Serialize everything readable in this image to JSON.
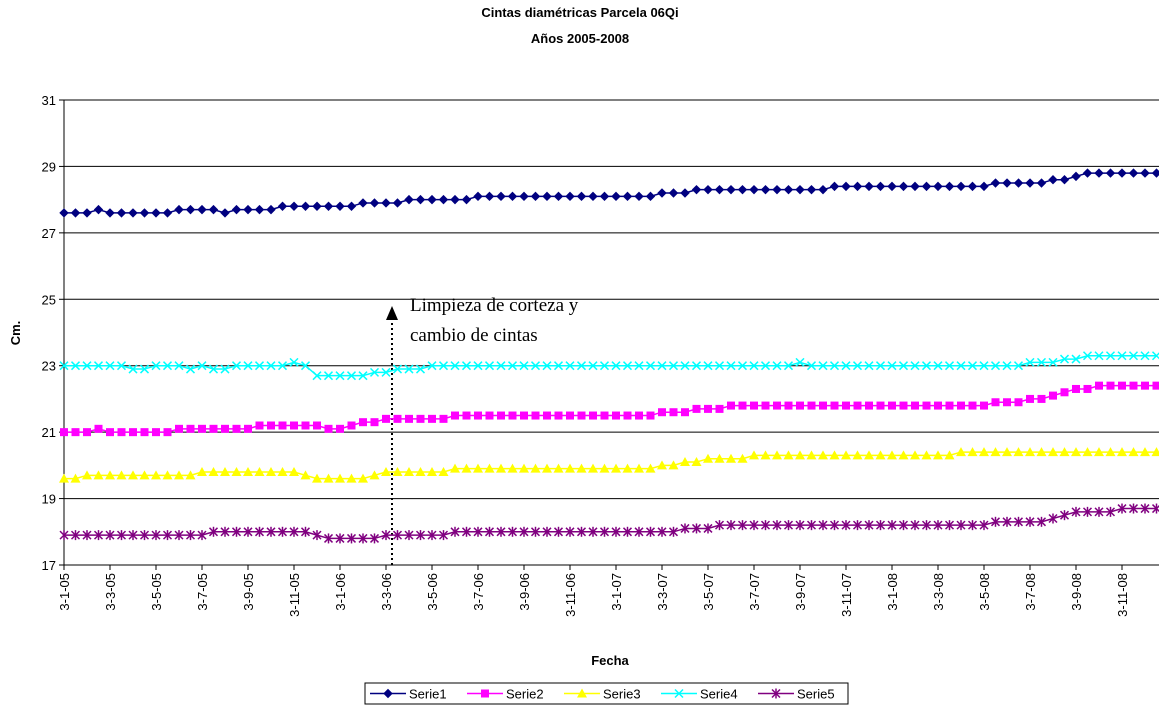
{
  "chart_data": {
    "type": "line",
    "title": "Cintas diamétricas  Parcela 06Qi",
    "subtitle": "Años 2005-2008",
    "y_label": "Cm.",
    "x_label": "Fecha",
    "annotation": [
      "Limpieza de corteza y",
      "cambio de cintas"
    ],
    "ylim": [
      17,
      31
    ],
    "yticks": [
      17,
      19,
      21,
      23,
      25,
      27,
      29,
      31
    ],
    "grid": true,
    "legend": "bottom",
    "categories": [
      "3-1-05",
      null,
      null,
      null,
      "3-3-05",
      null,
      null,
      null,
      "3-5-05",
      null,
      null,
      null,
      "3-7-05",
      null,
      null,
      null,
      "3-9-05",
      null,
      null,
      null,
      "3-11-05",
      null,
      null,
      null,
      "3-1-06",
      null,
      null,
      null,
      "3-3-06",
      null,
      null,
      null,
      "3-5-06",
      null,
      null,
      null,
      "3-7-06",
      null,
      null,
      null,
      "3-9-06",
      null,
      null,
      null,
      "3-11-06",
      null,
      null,
      null,
      "3-1-07",
      null,
      null,
      null,
      "3-3-07",
      null,
      null,
      null,
      "3-5-07",
      null,
      null,
      null,
      "3-7-07",
      null,
      null,
      null,
      "3-9-07",
      null,
      null,
      null,
      "3-11-07",
      null,
      null,
      null,
      "3-1-08",
      null,
      null,
      null,
      "3-3-08",
      null,
      null,
      null,
      "3-5-08",
      null,
      null,
      null,
      "3-7-08",
      null,
      null,
      null,
      "3-9-08",
      null,
      null,
      null,
      "3-11-08",
      null,
      null,
      null
    ],
    "series": [
      {
        "name": "Serie1",
        "color": "#000080",
        "marker": "diamond",
        "values": [
          27.6,
          27.6,
          27.6,
          27.7,
          27.6,
          27.6,
          27.6,
          27.6,
          27.6,
          27.6,
          27.7,
          27.7,
          27.7,
          27.7,
          27.6,
          27.7,
          27.7,
          27.7,
          27.7,
          27.8,
          27.8,
          27.8,
          27.8,
          27.8,
          27.8,
          27.8,
          27.9,
          27.9,
          27.9,
          27.9,
          28,
          28,
          28,
          28,
          28,
          28,
          28.1,
          28.1,
          28.1,
          28.1,
          28.1,
          28.1,
          28.1,
          28.1,
          28.1,
          28.1,
          28.1,
          28.1,
          28.1,
          28.1,
          28.1,
          28.1,
          28.2,
          28.2,
          28.2,
          28.3,
          28.3,
          28.3,
          28.3,
          28.3,
          28.3,
          28.3,
          28.3,
          28.3,
          28.3,
          28.3,
          28.3,
          28.4,
          28.4,
          28.4,
          28.4,
          28.4,
          28.4,
          28.4,
          28.4,
          28.4,
          28.4,
          28.4,
          28.4,
          28.4,
          28.4,
          28.5,
          28.5,
          28.5,
          28.5,
          28.5,
          28.6,
          28.6,
          28.7,
          28.8,
          28.8,
          28.8,
          28.8,
          28.8,
          28.8,
          28.8
        ]
      },
      {
        "name": "Serie2",
        "color": "#FF00FF",
        "marker": "square",
        "values": [
          21,
          21,
          21,
          21.1,
          21,
          21,
          21,
          21,
          21,
          21,
          21.1,
          21.1,
          21.1,
          21.1,
          21.1,
          21.1,
          21.1,
          21.2,
          21.2,
          21.2,
          21.2,
          21.2,
          21.2,
          21.1,
          21.1,
          21.2,
          21.3,
          21.3,
          21.4,
          21.4,
          21.4,
          21.4,
          21.4,
          21.4,
          21.5,
          21.5,
          21.5,
          21.5,
          21.5,
          21.5,
          21.5,
          21.5,
          21.5,
          21.5,
          21.5,
          21.5,
          21.5,
          21.5,
          21.5,
          21.5,
          21.5,
          21.5,
          21.6,
          21.6,
          21.6,
          21.7,
          21.7,
          21.7,
          21.8,
          21.8,
          21.8,
          21.8,
          21.8,
          21.8,
          21.8,
          21.8,
          21.8,
          21.8,
          21.8,
          21.8,
          21.8,
          21.8,
          21.8,
          21.8,
          21.8,
          21.8,
          21.8,
          21.8,
          21.8,
          21.8,
          21.8,
          21.9,
          21.9,
          21.9,
          22,
          22,
          22.1,
          22.2,
          22.3,
          22.3,
          22.4,
          22.4,
          22.4,
          22.4,
          22.4,
          22.4
        ]
      },
      {
        "name": "Serie3",
        "color": "#FFFF00",
        "marker": "triangle",
        "values": [
          19.6,
          19.6,
          19.7,
          19.7,
          19.7,
          19.7,
          19.7,
          19.7,
          19.7,
          19.7,
          19.7,
          19.7,
          19.8,
          19.8,
          19.8,
          19.8,
          19.8,
          19.8,
          19.8,
          19.8,
          19.8,
          19.7,
          19.6,
          19.6,
          19.6,
          19.6,
          19.6,
          19.7,
          19.8,
          19.8,
          19.8,
          19.8,
          19.8,
          19.8,
          19.9,
          19.9,
          19.9,
          19.9,
          19.9,
          19.9,
          19.9,
          19.9,
          19.9,
          19.9,
          19.9,
          19.9,
          19.9,
          19.9,
          19.9,
          19.9,
          19.9,
          19.9,
          20,
          20,
          20.1,
          20.1,
          20.2,
          20.2,
          20.2,
          20.2,
          20.3,
          20.3,
          20.3,
          20.3,
          20.3,
          20.3,
          20.3,
          20.3,
          20.3,
          20.3,
          20.3,
          20.3,
          20.3,
          20.3,
          20.3,
          20.3,
          20.3,
          20.3,
          20.4,
          20.4,
          20.4,
          20.4,
          20.4,
          20.4,
          20.4,
          20.4,
          20.4,
          20.4,
          20.4,
          20.4,
          20.4,
          20.4,
          20.4,
          20.4,
          20.4,
          20.4
        ]
      },
      {
        "name": "Serie4",
        "color": "#00FFFF",
        "marker": "x",
        "values": [
          23,
          23,
          23,
          23,
          23,
          23,
          22.9,
          22.9,
          23,
          23,
          23,
          22.9,
          23,
          22.9,
          22.9,
          23,
          23,
          23,
          23,
          23,
          23.1,
          23,
          22.7,
          22.7,
          22.7,
          22.7,
          22.7,
          22.8,
          22.8,
          22.9,
          22.9,
          22.9,
          23,
          23,
          23,
          23,
          23,
          23,
          23,
          23,
          23,
          23,
          23,
          23,
          23,
          23,
          23,
          23,
          23,
          23,
          23,
          23,
          23,
          23,
          23,
          23,
          23,
          23,
          23,
          23,
          23,
          23,
          23,
          23,
          23.1,
          23,
          23,
          23,
          23,
          23,
          23,
          23,
          23,
          23,
          23,
          23,
          23,
          23,
          23,
          23,
          23,
          23,
          23,
          23,
          23.1,
          23.1,
          23.1,
          23.2,
          23.2,
          23.3,
          23.3,
          23.3,
          23.3,
          23.3,
          23.3,
          23.3
        ]
      },
      {
        "name": "Serie5",
        "color": "#800080",
        "marker": "asterisk",
        "values": [
          17.9,
          17.9,
          17.9,
          17.9,
          17.9,
          17.9,
          17.9,
          17.9,
          17.9,
          17.9,
          17.9,
          17.9,
          17.9,
          18,
          18,
          18,
          18,
          18,
          18,
          18,
          18,
          18,
          17.9,
          17.8,
          17.8,
          17.8,
          17.8,
          17.8,
          17.9,
          17.9,
          17.9,
          17.9,
          17.9,
          17.9,
          18,
          18,
          18,
          18,
          18,
          18,
          18,
          18,
          18,
          18,
          18,
          18,
          18,
          18,
          18,
          18,
          18,
          18,
          18,
          18,
          18.1,
          18.1,
          18.1,
          18.2,
          18.2,
          18.2,
          18.2,
          18.2,
          18.2,
          18.2,
          18.2,
          18.2,
          18.2,
          18.2,
          18.2,
          18.2,
          18.2,
          18.2,
          18.2,
          18.2,
          18.2,
          18.2,
          18.2,
          18.2,
          18.2,
          18.2,
          18.2,
          18.3,
          18.3,
          18.3,
          18.3,
          18.3,
          18.4,
          18.5,
          18.6,
          18.6,
          18.6,
          18.6,
          18.7,
          18.7,
          18.7,
          18.7
        ]
      }
    ]
  }
}
